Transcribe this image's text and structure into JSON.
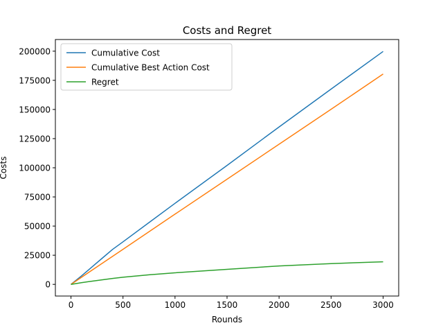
{
  "chart_data": {
    "type": "line",
    "title": "Costs and Regret",
    "xlabel": "Rounds",
    "ylabel": "Costs",
    "xlim": [
      -150,
      3150
    ],
    "ylim": [
      -10000,
      210000
    ],
    "xticks": [
      0,
      500,
      1000,
      1500,
      2000,
      2500,
      3000
    ],
    "yticks": [
      0,
      25000,
      50000,
      75000,
      100000,
      125000,
      150000,
      175000,
      200000
    ],
    "legend_position": "upper-left",
    "grid": false,
    "series": [
      {
        "name": "Cumulative Cost",
        "color": "#1f77b4",
        "x": [
          0,
          100,
          200,
          300,
          400,
          500,
          750,
          1000,
          1500,
          2000,
          2500,
          3000
        ],
        "y": [
          0,
          7200,
          14800,
          22400,
          30000,
          36500,
          53000,
          69500,
          102000,
          135000,
          167500,
          199800
        ]
      },
      {
        "name": "Cumulative Best Action Cost",
        "color": "#ff7f0e",
        "x": [
          0,
          500,
          1000,
          1500,
          2000,
          2500,
          3000
        ],
        "y": [
          0,
          30100,
          60200,
          90200,
          120200,
          150200,
          180400
        ]
      },
      {
        "name": "Regret",
        "color": "#2ca02c",
        "x": [
          0,
          100,
          200,
          300,
          400,
          500,
          750,
          1000,
          1500,
          2000,
          2500,
          3000
        ],
        "y": [
          0,
          1400,
          2700,
          3900,
          5100,
          6100,
          8200,
          9900,
          12900,
          15800,
          17800,
          19400
        ]
      }
    ]
  }
}
